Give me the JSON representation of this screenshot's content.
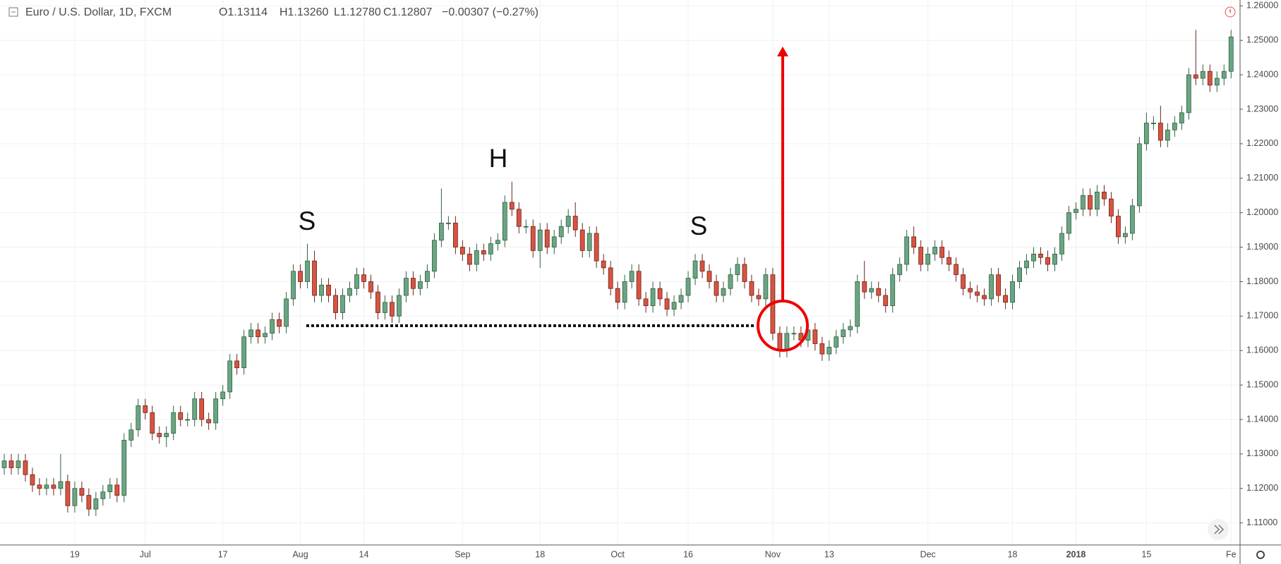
{
  "chart_data": {
    "type": "candlestick",
    "title": "Euro / U.S. Dollar, 1D, FXCM",
    "header_values": [
      "O1.13114",
      "H1.13260",
      "L1.12780",
      "C1.12807",
      "−0.00307 (−0.27%)"
    ],
    "annotations": [
      "S",
      "H",
      "S"
    ],
    "up_color": "#6ba583",
    "down_color": "#d75442",
    "grid": true,
    "ylim": [
      1.1036,
      1.2617
    ],
    "yticks": [
      {
        "value": 1.11,
        "label": "1.11000"
      },
      {
        "value": 1.12,
        "label": "1.12000"
      },
      {
        "value": 1.13,
        "label": "1.13000"
      },
      {
        "value": 1.14,
        "label": "1.14000"
      },
      {
        "value": 1.15,
        "label": "1.15000"
      },
      {
        "value": 1.16,
        "label": "1.16000"
      },
      {
        "value": 1.17,
        "label": "1.17000"
      },
      {
        "value": 1.18,
        "label": "1.18000"
      },
      {
        "value": 1.19,
        "label": "1.19000"
      },
      {
        "value": 1.2,
        "label": "1.20000"
      },
      {
        "value": 1.21,
        "label": "1.21000"
      },
      {
        "value": 1.22,
        "label": "1.22000"
      },
      {
        "value": 1.23,
        "label": "1.23000"
      },
      {
        "value": 1.24,
        "label": "1.24000"
      },
      {
        "value": 1.25,
        "label": "1.25000"
      },
      {
        "value": 1.26,
        "label": "1.26000"
      }
    ],
    "categories": [
      null,
      null,
      null,
      null,
      null,
      null,
      null,
      null,
      null,
      null,
      "19",
      null,
      null,
      null,
      null,
      null,
      null,
      null,
      null,
      null,
      "Jul",
      null,
      null,
      null,
      null,
      null,
      null,
      null,
      null,
      null,
      null,
      "17",
      null,
      null,
      null,
      null,
      null,
      null,
      null,
      null,
      null,
      null,
      "Aug",
      null,
      null,
      null,
      null,
      null,
      null,
      null,
      null,
      "14",
      null,
      null,
      null,
      null,
      null,
      null,
      null,
      null,
      null,
      null,
      null,
      null,
      null,
      "Sep",
      null,
      null,
      null,
      null,
      null,
      null,
      null,
      null,
      null,
      null,
      "18",
      null,
      null,
      null,
      null,
      null,
      null,
      null,
      null,
      null,
      null,
      "Oct",
      null,
      null,
      null,
      null,
      null,
      null,
      null,
      null,
      null,
      "16",
      null,
      null,
      null,
      null,
      null,
      null,
      null,
      null,
      null,
      null,
      null,
      "Nov",
      null,
      null,
      null,
      null,
      null,
      null,
      null,
      "13",
      null,
      null,
      null,
      null,
      null,
      null,
      null,
      null,
      null,
      null,
      null,
      null,
      null,
      "Dec",
      null,
      null,
      null,
      null,
      null,
      null,
      null,
      null,
      null,
      null,
      null,
      "18",
      null,
      null,
      null,
      null,
      null,
      null,
      null,
      null,
      "2018",
      null,
      null,
      null,
      null,
      null,
      null,
      null,
      null,
      null,
      "15",
      null,
      null,
      null,
      null,
      null,
      null,
      null,
      null,
      null,
      null,
      null,
      "Fe"
    ],
    "candles": [
      [
        1.126,
        1.13,
        1.124,
        1.128
      ],
      [
        1.128,
        1.13,
        1.124,
        1.126
      ],
      [
        1.126,
        1.13,
        1.124,
        1.128
      ],
      [
        1.128,
        1.13,
        1.122,
        1.124
      ],
      [
        1.124,
        1.126,
        1.119,
        1.121
      ],
      [
        1.121,
        1.123,
        1.118,
        1.12
      ],
      [
        1.12,
        1.123,
        1.118,
        1.121
      ],
      [
        1.121,
        1.123,
        1.118,
        1.12
      ],
      [
        1.12,
        1.13,
        1.118,
        1.122
      ],
      [
        1.122,
        1.124,
        1.113,
        1.115
      ],
      [
        1.115,
        1.122,
        1.113,
        1.12
      ],
      [
        1.12,
        1.122,
        1.116,
        1.118
      ],
      [
        1.118,
        1.12,
        1.112,
        1.114
      ],
      [
        1.114,
        1.119,
        1.112,
        1.117
      ],
      [
        1.117,
        1.121,
        1.115,
        1.119
      ],
      [
        1.119,
        1.123,
        1.117,
        1.121
      ],
      [
        1.121,
        1.123,
        1.116,
        1.118
      ],
      [
        1.118,
        1.136,
        1.116,
        1.134
      ],
      [
        1.134,
        1.139,
        1.132,
        1.137
      ],
      [
        1.137,
        1.146,
        1.135,
        1.144
      ],
      [
        1.144,
        1.146,
        1.14,
        1.142
      ],
      [
        1.142,
        1.144,
        1.134,
        1.136
      ],
      [
        1.136,
        1.138,
        1.133,
        1.135
      ],
      [
        1.135,
        1.138,
        1.132,
        1.136
      ],
      [
        1.136,
        1.144,
        1.134,
        1.142
      ],
      [
        1.142,
        1.144,
        1.138,
        1.14
      ],
      [
        1.14,
        1.142,
        1.138,
        1.14
      ],
      [
        1.14,
        1.148,
        1.138,
        1.146
      ],
      [
        1.146,
        1.148,
        1.138,
        1.14
      ],
      [
        1.14,
        1.142,
        1.137,
        1.139
      ],
      [
        1.139,
        1.148,
        1.137,
        1.146
      ],
      [
        1.146,
        1.15,
        1.144,
        1.148
      ],
      [
        1.148,
        1.159,
        1.146,
        1.157
      ],
      [
        1.157,
        1.159,
        1.153,
        1.155
      ],
      [
        1.155,
        1.166,
        1.153,
        1.164
      ],
      [
        1.164,
        1.168,
        1.162,
        1.166
      ],
      [
        1.166,
        1.168,
        1.162,
        1.164
      ],
      [
        1.164,
        1.167,
        1.162,
        1.165
      ],
      [
        1.165,
        1.171,
        1.163,
        1.169
      ],
      [
        1.169,
        1.171,
        1.165,
        1.167
      ],
      [
        1.167,
        1.177,
        1.165,
        1.175
      ],
      [
        1.175,
        1.185,
        1.173,
        1.183
      ],
      [
        1.183,
        1.185,
        1.178,
        1.18
      ],
      [
        1.18,
        1.191,
        1.178,
        1.186
      ],
      [
        1.186,
        1.189,
        1.174,
        1.176
      ],
      [
        1.176,
        1.181,
        1.174,
        1.179
      ],
      [
        1.179,
        1.181,
        1.174,
        1.176
      ],
      [
        1.176,
        1.178,
        1.169,
        1.171
      ],
      [
        1.171,
        1.178,
        1.169,
        1.176
      ],
      [
        1.176,
        1.18,
        1.174,
        1.178
      ],
      [
        1.178,
        1.184,
        1.176,
        1.182
      ],
      [
        1.182,
        1.184,
        1.178,
        1.18
      ],
      [
        1.18,
        1.182,
        1.175,
        1.177
      ],
      [
        1.177,
        1.179,
        1.169,
        1.171
      ],
      [
        1.171,
        1.176,
        1.169,
        1.174
      ],
      [
        1.174,
        1.176,
        1.168,
        1.17
      ],
      [
        1.17,
        1.178,
        1.168,
        1.176
      ],
      [
        1.176,
        1.183,
        1.174,
        1.181
      ],
      [
        1.181,
        1.183,
        1.176,
        1.178
      ],
      [
        1.178,
        1.182,
        1.176,
        1.18
      ],
      [
        1.18,
        1.185,
        1.178,
        1.183
      ],
      [
        1.183,
        1.194,
        1.181,
        1.192
      ],
      [
        1.192,
        1.207,
        1.19,
        1.197
      ],
      [
        1.197,
        1.199,
        1.195,
        1.197
      ],
      [
        1.197,
        1.199,
        1.188,
        1.19
      ],
      [
        1.19,
        1.192,
        1.186,
        1.188
      ],
      [
        1.188,
        1.19,
        1.183,
        1.185
      ],
      [
        1.185,
        1.191,
        1.183,
        1.189
      ],
      [
        1.189,
        1.191,
        1.186,
        1.188
      ],
      [
        1.188,
        1.193,
        1.186,
        1.191
      ],
      [
        1.191,
        1.194,
        1.189,
        1.192
      ],
      [
        1.192,
        1.205,
        1.19,
        1.203
      ],
      [
        1.203,
        1.209,
        1.199,
        1.201
      ],
      [
        1.201,
        1.203,
        1.194,
        1.196
      ],
      [
        1.196,
        1.198,
        1.194,
        1.196
      ],
      [
        1.196,
        1.198,
        1.187,
        1.189
      ],
      [
        1.189,
        1.197,
        1.184,
        1.195
      ],
      [
        1.195,
        1.197,
        1.188,
        1.19
      ],
      [
        1.19,
        1.195,
        1.188,
        1.193
      ],
      [
        1.193,
        1.198,
        1.191,
        1.196
      ],
      [
        1.196,
        1.201,
        1.194,
        1.199
      ],
      [
        1.199,
        1.203,
        1.193,
        1.195
      ],
      [
        1.195,
        1.197,
        1.187,
        1.189
      ],
      [
        1.189,
        1.196,
        1.187,
        1.194
      ],
      [
        1.194,
        1.196,
        1.184,
        1.186
      ],
      [
        1.186,
        1.188,
        1.182,
        1.184
      ],
      [
        1.184,
        1.186,
        1.176,
        1.178
      ],
      [
        1.178,
        1.18,
        1.172,
        1.174
      ],
      [
        1.174,
        1.182,
        1.172,
        1.18
      ],
      [
        1.18,
        1.185,
        1.178,
        1.183
      ],
      [
        1.183,
        1.185,
        1.173,
        1.175
      ],
      [
        1.175,
        1.177,
        1.171,
        1.173
      ],
      [
        1.173,
        1.18,
        1.171,
        1.178
      ],
      [
        1.178,
        1.18,
        1.173,
        1.175
      ],
      [
        1.175,
        1.177,
        1.17,
        1.172
      ],
      [
        1.172,
        1.176,
        1.17,
        1.174
      ],
      [
        1.174,
        1.178,
        1.172,
        1.176
      ],
      [
        1.176,
        1.183,
        1.174,
        1.181
      ],
      [
        1.181,
        1.188,
        1.179,
        1.186
      ],
      [
        1.186,
        1.188,
        1.181,
        1.183
      ],
      [
        1.183,
        1.185,
        1.178,
        1.18
      ],
      [
        1.18,
        1.182,
        1.174,
        1.176
      ],
      [
        1.176,
        1.18,
        1.174,
        1.178
      ],
      [
        1.178,
        1.184,
        1.176,
        1.182
      ],
      [
        1.182,
        1.187,
        1.18,
        1.185
      ],
      [
        1.185,
        1.187,
        1.178,
        1.18
      ],
      [
        1.18,
        1.182,
        1.174,
        1.176
      ],
      [
        1.176,
        1.178,
        1.173,
        1.175
      ],
      [
        1.175,
        1.184,
        1.173,
        1.182
      ],
      [
        1.182,
        1.184,
        1.163,
        1.165
      ],
      [
        1.165,
        1.167,
        1.158,
        1.16
      ],
      [
        1.16,
        1.167,
        1.158,
        1.165
      ],
      [
        1.165,
        1.167,
        1.163,
        1.165
      ],
      [
        1.165,
        1.167,
        1.161,
        1.163
      ],
      [
        1.163,
        1.169,
        1.161,
        1.166
      ],
      [
        1.166,
        1.168,
        1.16,
        1.162
      ],
      [
        1.162,
        1.164,
        1.157,
        1.159
      ],
      [
        1.159,
        1.163,
        1.157,
        1.161
      ],
      [
        1.161,
        1.166,
        1.159,
        1.164
      ],
      [
        1.164,
        1.168,
        1.162,
        1.166
      ],
      [
        1.166,
        1.169,
        1.164,
        1.167
      ],
      [
        1.167,
        1.182,
        1.165,
        1.18
      ],
      [
        1.18,
        1.186,
        1.175,
        1.177
      ],
      [
        1.177,
        1.18,
        1.175,
        1.178
      ],
      [
        1.178,
        1.18,
        1.174,
        1.176
      ],
      [
        1.176,
        1.178,
        1.171,
        1.173
      ],
      [
        1.173,
        1.184,
        1.171,
        1.182
      ],
      [
        1.182,
        1.187,
        1.18,
        1.185
      ],
      [
        1.185,
        1.195,
        1.183,
        1.193
      ],
      [
        1.193,
        1.196,
        1.188,
        1.19
      ],
      [
        1.19,
        1.192,
        1.183,
        1.185
      ],
      [
        1.185,
        1.19,
        1.183,
        1.188
      ],
      [
        1.188,
        1.192,
        1.186,
        1.19
      ],
      [
        1.19,
        1.192,
        1.185,
        1.187
      ],
      [
        1.187,
        1.189,
        1.183,
        1.185
      ],
      [
        1.185,
        1.187,
        1.18,
        1.182
      ],
      [
        1.182,
        1.184,
        1.176,
        1.178
      ],
      [
        1.178,
        1.18,
        1.175,
        1.177
      ],
      [
        1.177,
        1.179,
        1.174,
        1.176
      ],
      [
        1.176,
        1.178,
        1.173,
        1.175
      ],
      [
        1.175,
        1.184,
        1.173,
        1.182
      ],
      [
        1.182,
        1.184,
        1.174,
        1.176
      ],
      [
        1.176,
        1.178,
        1.172,
        1.174
      ],
      [
        1.174,
        1.182,
        1.172,
        1.18
      ],
      [
        1.18,
        1.186,
        1.178,
        1.184
      ],
      [
        1.184,
        1.188,
        1.182,
        1.186
      ],
      [
        1.186,
        1.19,
        1.184,
        1.188
      ],
      [
        1.188,
        1.19,
        1.185,
        1.187
      ],
      [
        1.187,
        1.189,
        1.183,
        1.185
      ],
      [
        1.185,
        1.19,
        1.183,
        1.188
      ],
      [
        1.188,
        1.196,
        1.186,
        1.194
      ],
      [
        1.194,
        1.202,
        1.192,
        1.2
      ],
      [
        1.2,
        1.203,
        1.198,
        1.201
      ],
      [
        1.201,
        1.207,
        1.199,
        1.205
      ],
      [
        1.205,
        1.207,
        1.199,
        1.201
      ],
      [
        1.201,
        1.208,
        1.199,
        1.206
      ],
      [
        1.206,
        1.208,
        1.202,
        1.204
      ],
      [
        1.204,
        1.206,
        1.197,
        1.199
      ],
      [
        1.199,
        1.201,
        1.191,
        1.193
      ],
      [
        1.193,
        1.196,
        1.191,
        1.194
      ],
      [
        1.194,
        1.204,
        1.192,
        1.202
      ],
      [
        1.202,
        1.222,
        1.2,
        1.22
      ],
      [
        1.22,
        1.229,
        1.218,
        1.226
      ],
      [
        1.226,
        1.228,
        1.224,
        1.226
      ],
      [
        1.226,
        1.231,
        1.219,
        1.221
      ],
      [
        1.221,
        1.226,
        1.219,
        1.224
      ],
      [
        1.224,
        1.228,
        1.222,
        1.226
      ],
      [
        1.226,
        1.231,
        1.224,
        1.229
      ],
      [
        1.229,
        1.242,
        1.227,
        1.24
      ],
      [
        1.24,
        1.253,
        1.237,
        1.239
      ],
      [
        1.239,
        1.243,
        1.237,
        1.241
      ],
      [
        1.241,
        1.243,
        1.235,
        1.237
      ],
      [
        1.237,
        1.241,
        1.235,
        1.239
      ],
      [
        1.239,
        1.243,
        1.237,
        1.241
      ],
      [
        1.241,
        1.253,
        1.239,
        1.251
      ]
    ]
  }
}
